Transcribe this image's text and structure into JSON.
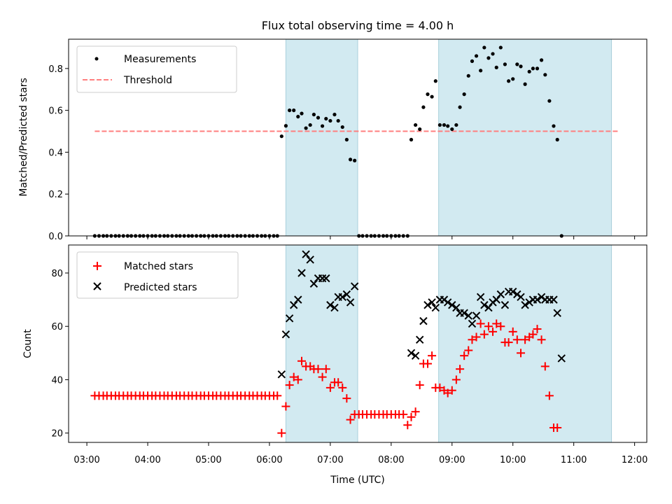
{
  "chart_data": {
    "type": "scatter",
    "title": "Flux total observing time = 4.00 h",
    "xlabel": "Time (UTC)",
    "xlim": [
      2.7,
      12.2
    ],
    "xticks": [
      {
        "v": 3,
        "label": "03:00"
      },
      {
        "v": 4,
        "label": "04:00"
      },
      {
        "v": 5,
        "label": "05:00"
      },
      {
        "v": 6,
        "label": "06:00"
      },
      {
        "v": 7,
        "label": "07:00"
      },
      {
        "v": 8,
        "label": "08:00"
      },
      {
        "v": 9,
        "label": "09:00"
      },
      {
        "v": 10,
        "label": "10:00"
      },
      {
        "v": 11,
        "label": "11:00"
      },
      {
        "v": 12,
        "label": "12:00"
      }
    ],
    "shaded_intervals": [
      [
        6.27,
        7.45
      ],
      [
        8.78,
        11.62
      ]
    ],
    "shade_color": "#add8e6",
    "top": {
      "ylabel": "Matched/Predicted stars",
      "ylim": [
        0,
        0.94
      ],
      "yticks": [
        0.0,
        0.2,
        0.4,
        0.6,
        0.8
      ],
      "ytick_labels": [
        "0.0",
        "0.2",
        "0.4",
        "0.6",
        "0.8"
      ],
      "legend": [
        "Measurements",
        "Threshold"
      ],
      "threshold": {
        "y": 0.5,
        "x_start": 3.13,
        "x_end": 11.75,
        "color": "#ff7f7f"
      },
      "measurements": [
        [
          3.13,
          0
        ],
        [
          3.2,
          0
        ],
        [
          3.27,
          0
        ],
        [
          3.33,
          0
        ],
        [
          3.4,
          0
        ],
        [
          3.47,
          0
        ],
        [
          3.53,
          0
        ],
        [
          3.6,
          0
        ],
        [
          3.67,
          0
        ],
        [
          3.73,
          0
        ],
        [
          3.8,
          0
        ],
        [
          3.87,
          0
        ],
        [
          3.93,
          0
        ],
        [
          4.0,
          0
        ],
        [
          4.07,
          0
        ],
        [
          4.13,
          0
        ],
        [
          4.2,
          0
        ],
        [
          4.27,
          0
        ],
        [
          4.33,
          0
        ],
        [
          4.4,
          0
        ],
        [
          4.47,
          0
        ],
        [
          4.53,
          0
        ],
        [
          4.6,
          0
        ],
        [
          4.67,
          0
        ],
        [
          4.73,
          0
        ],
        [
          4.8,
          0
        ],
        [
          4.87,
          0
        ],
        [
          4.93,
          0
        ],
        [
          5.0,
          0
        ],
        [
          5.07,
          0
        ],
        [
          5.13,
          0
        ],
        [
          5.2,
          0
        ],
        [
          5.27,
          0
        ],
        [
          5.33,
          0
        ],
        [
          5.4,
          0
        ],
        [
          5.47,
          0
        ],
        [
          5.53,
          0
        ],
        [
          5.6,
          0
        ],
        [
          5.67,
          0
        ],
        [
          5.73,
          0
        ],
        [
          5.8,
          0
        ],
        [
          5.87,
          0
        ],
        [
          5.93,
          0
        ],
        [
          6.0,
          0
        ],
        [
          6.07,
          0
        ],
        [
          6.13,
          0
        ],
        [
          6.2,
          0.476
        ],
        [
          6.27,
          0.526
        ],
        [
          6.33,
          0.6
        ],
        [
          6.4,
          0.6
        ],
        [
          6.47,
          0.57
        ],
        [
          6.53,
          0.585
        ],
        [
          6.6,
          0.515
        ],
        [
          6.67,
          0.53
        ],
        [
          6.73,
          0.58
        ],
        [
          6.8,
          0.565
        ],
        [
          6.87,
          0.525
        ],
        [
          6.93,
          0.56
        ],
        [
          7.0,
          0.55
        ],
        [
          7.07,
          0.58
        ],
        [
          7.13,
          0.55
        ],
        [
          7.2,
          0.52
        ],
        [
          7.27,
          0.46
        ],
        [
          7.33,
          0.365
        ],
        [
          7.4,
          0.36
        ],
        [
          7.47,
          0
        ],
        [
          7.53,
          0
        ],
        [
          7.6,
          0
        ],
        [
          7.67,
          0
        ],
        [
          7.73,
          0
        ],
        [
          7.8,
          0
        ],
        [
          7.87,
          0
        ],
        [
          7.93,
          0
        ],
        [
          8.0,
          0
        ],
        [
          8.07,
          0
        ],
        [
          8.13,
          0
        ],
        [
          8.2,
          0
        ],
        [
          8.27,
          0
        ],
        [
          8.33,
          0.46
        ],
        [
          8.4,
          0.53
        ],
        [
          8.47,
          0.51
        ],
        [
          8.53,
          0.615
        ],
        [
          8.6,
          0.677
        ],
        [
          8.67,
          0.665
        ],
        [
          8.73,
          0.74
        ],
        [
          8.8,
          0.53
        ],
        [
          8.87,
          0.53
        ],
        [
          8.93,
          0.525
        ],
        [
          9.0,
          0.51
        ],
        [
          9.07,
          0.53
        ],
        [
          9.13,
          0.615
        ],
        [
          9.2,
          0.677
        ],
        [
          9.27,
          0.765
        ],
        [
          9.33,
          0.835
        ],
        [
          9.4,
          0.86
        ],
        [
          9.47,
          0.79
        ],
        [
          9.53,
          0.9
        ],
        [
          9.6,
          0.85
        ],
        [
          9.67,
          0.87
        ],
        [
          9.73,
          0.805
        ],
        [
          9.8,
          0.9
        ],
        [
          9.87,
          0.82
        ],
        [
          9.93,
          0.74
        ],
        [
          10.0,
          0.75
        ],
        [
          10.07,
          0.82
        ],
        [
          10.13,
          0.81
        ],
        [
          10.2,
          0.725
        ],
        [
          10.27,
          0.785
        ],
        [
          10.33,
          0.8
        ],
        [
          10.4,
          0.8
        ],
        [
          10.47,
          0.84
        ],
        [
          10.53,
          0.77
        ],
        [
          10.6,
          0.645
        ],
        [
          10.67,
          0.525
        ],
        [
          10.73,
          0.46
        ],
        [
          10.8,
          0.0
        ]
      ]
    },
    "bottom": {
      "ylabel": "Count",
      "ylim": [
        16.5,
        90.5
      ],
      "yticks": [
        20,
        40,
        60,
        80
      ],
      "ytick_labels": [
        "20",
        "40",
        "60",
        "80"
      ],
      "legend": [
        "Matched stars",
        "Predicted stars"
      ],
      "matched": [
        [
          3.13,
          34
        ],
        [
          3.2,
          34
        ],
        [
          3.27,
          34
        ],
        [
          3.33,
          34
        ],
        [
          3.4,
          34
        ],
        [
          3.47,
          34
        ],
        [
          3.53,
          34
        ],
        [
          3.6,
          34
        ],
        [
          3.67,
          34
        ],
        [
          3.73,
          34
        ],
        [
          3.8,
          34
        ],
        [
          3.87,
          34
        ],
        [
          3.93,
          34
        ],
        [
          4.0,
          34
        ],
        [
          4.07,
          34
        ],
        [
          4.13,
          34
        ],
        [
          4.2,
          34
        ],
        [
          4.27,
          34
        ],
        [
          4.33,
          34
        ],
        [
          4.4,
          34
        ],
        [
          4.47,
          34
        ],
        [
          4.53,
          34
        ],
        [
          4.6,
          34
        ],
        [
          4.67,
          34
        ],
        [
          4.73,
          34
        ],
        [
          4.8,
          34
        ],
        [
          4.87,
          34
        ],
        [
          4.93,
          34
        ],
        [
          5.0,
          34
        ],
        [
          5.07,
          34
        ],
        [
          5.13,
          34
        ],
        [
          5.2,
          34
        ],
        [
          5.27,
          34
        ],
        [
          5.33,
          34
        ],
        [
          5.4,
          34
        ],
        [
          5.47,
          34
        ],
        [
          5.53,
          34
        ],
        [
          5.6,
          34
        ],
        [
          5.67,
          34
        ],
        [
          5.73,
          34
        ],
        [
          5.8,
          34
        ],
        [
          5.87,
          34
        ],
        [
          5.93,
          34
        ],
        [
          6.0,
          34
        ],
        [
          6.07,
          34
        ],
        [
          6.13,
          34
        ],
        [
          6.2,
          20
        ],
        [
          6.27,
          30
        ],
        [
          6.33,
          38
        ],
        [
          6.4,
          41
        ],
        [
          6.47,
          40
        ],
        [
          6.53,
          47
        ],
        [
          6.6,
          45
        ],
        [
          6.67,
          45
        ],
        [
          6.73,
          44
        ],
        [
          6.8,
          44
        ],
        [
          6.87,
          41
        ],
        [
          6.93,
          44
        ],
        [
          7.0,
          37
        ],
        [
          7.07,
          39
        ],
        [
          7.13,
          39
        ],
        [
          7.2,
          37
        ],
        [
          7.27,
          33
        ],
        [
          7.33,
          25
        ],
        [
          7.4,
          27
        ],
        [
          7.47,
          27
        ],
        [
          7.53,
          27
        ],
        [
          7.6,
          27
        ],
        [
          7.67,
          27
        ],
        [
          7.73,
          27
        ],
        [
          7.8,
          27
        ],
        [
          7.87,
          27
        ],
        [
          7.93,
          27
        ],
        [
          8.0,
          27
        ],
        [
          8.07,
          27
        ],
        [
          8.13,
          27
        ],
        [
          8.2,
          27
        ],
        [
          8.27,
          23
        ],
        [
          8.33,
          26
        ],
        [
          8.4,
          28
        ],
        [
          8.47,
          38
        ],
        [
          8.53,
          46
        ],
        [
          8.6,
          46
        ],
        [
          8.67,
          49
        ],
        [
          8.73,
          37
        ],
        [
          8.8,
          37
        ],
        [
          8.87,
          36
        ],
        [
          8.93,
          35
        ],
        [
          9.0,
          36
        ],
        [
          9.07,
          40
        ],
        [
          9.13,
          44
        ],
        [
          9.2,
          49
        ],
        [
          9.27,
          51
        ],
        [
          9.33,
          55
        ],
        [
          9.4,
          56
        ],
        [
          9.47,
          61
        ],
        [
          9.53,
          57
        ],
        [
          9.6,
          60
        ],
        [
          9.67,
          58
        ],
        [
          9.73,
          61
        ],
        [
          9.8,
          60
        ],
        [
          9.87,
          54
        ],
        [
          9.93,
          54
        ],
        [
          10.0,
          58
        ],
        [
          10.07,
          55
        ],
        [
          10.13,
          50
        ],
        [
          10.2,
          55
        ],
        [
          10.27,
          56
        ],
        [
          10.33,
          57
        ],
        [
          10.4,
          59
        ],
        [
          10.47,
          55
        ],
        [
          10.53,
          45
        ],
        [
          10.6,
          34
        ],
        [
          10.67,
          22
        ],
        [
          10.73,
          22
        ]
      ],
      "predicted": [
        [
          6.2,
          42
        ],
        [
          6.27,
          57
        ],
        [
          6.33,
          63
        ],
        [
          6.4,
          68
        ],
        [
          6.47,
          70
        ],
        [
          6.53,
          80
        ],
        [
          6.6,
          87
        ],
        [
          6.67,
          85
        ],
        [
          6.73,
          76
        ],
        [
          6.8,
          78
        ],
        [
          6.87,
          78
        ],
        [
          6.93,
          78
        ],
        [
          7.0,
          68
        ],
        [
          7.07,
          67
        ],
        [
          7.13,
          71
        ],
        [
          7.2,
          71
        ],
        [
          7.27,
          72
        ],
        [
          7.33,
          69
        ],
        [
          7.4,
          75
        ],
        [
          8.33,
          50
        ],
        [
          8.4,
          49
        ],
        [
          8.47,
          55
        ],
        [
          8.53,
          62
        ],
        [
          8.6,
          68
        ],
        [
          8.67,
          69
        ],
        [
          8.73,
          67
        ],
        [
          8.8,
          70
        ],
        [
          8.87,
          70
        ],
        [
          8.93,
          69
        ],
        [
          9.0,
          68
        ],
        [
          9.07,
          67
        ],
        [
          9.13,
          65
        ],
        [
          9.2,
          65
        ],
        [
          9.27,
          64
        ],
        [
          9.33,
          61
        ],
        [
          9.4,
          64
        ],
        [
          9.47,
          71
        ],
        [
          9.53,
          68
        ],
        [
          9.6,
          67
        ],
        [
          9.67,
          69
        ],
        [
          9.73,
          70
        ],
        [
          9.8,
          72
        ],
        [
          9.87,
          68
        ],
        [
          9.93,
          73
        ],
        [
          10.0,
          73
        ],
        [
          10.07,
          72
        ],
        [
          10.13,
          71
        ],
        [
          10.2,
          68
        ],
        [
          10.27,
          69
        ],
        [
          10.33,
          70
        ],
        [
          10.4,
          70
        ],
        [
          10.47,
          71
        ],
        [
          10.53,
          70
        ],
        [
          10.6,
          70
        ],
        [
          10.67,
          70
        ],
        [
          10.73,
          65
        ],
        [
          10.8,
          48
        ]
      ]
    }
  }
}
